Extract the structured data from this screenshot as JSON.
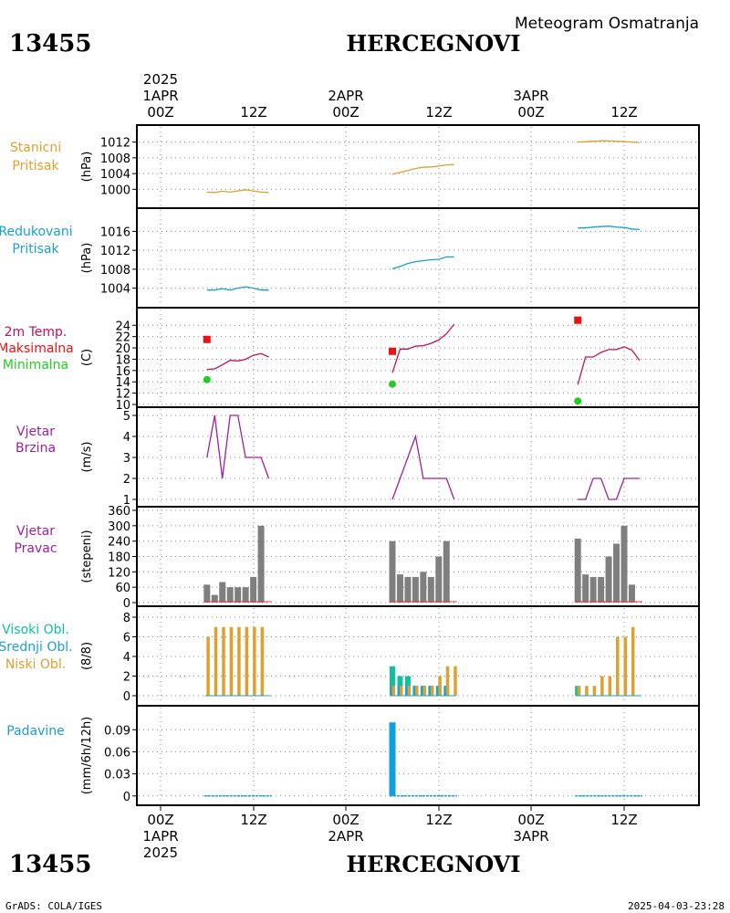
{
  "header": {
    "station_id": "13455",
    "station_name": "HERCEGNOVI",
    "subtitle": "Meteogram Osmatranja"
  },
  "footer": {
    "station_id": "13455",
    "station_name": "HERCEGNOVI",
    "credit": "GrADS: COLA/IGES",
    "timestamp": "2025-04-03-23:28"
  },
  "colors": {
    "pressure": "#e0a030",
    "reduced": "#1aa0d0",
    "temp_line": "#c0105a",
    "temp_max": "#ee1111",
    "temp_min": "#22cc22",
    "wind": "#a020a0",
    "dir_bar": "#7f7f7f",
    "dir_base": "#e04040",
    "cloud_high": "#10c0a0",
    "cloud_mid": "#1aa0d0",
    "cloud_low": "#e0a030",
    "precip": "#10a0e0"
  },
  "time_axis": {
    "year": "2025",
    "days": [
      {
        "date": "1APR",
        "hour0": "00Z",
        "hour12": "12Z"
      },
      {
        "date": "2APR",
        "hour0": "00Z",
        "hour12": "12Z"
      },
      {
        "date": "3APR",
        "hour0": "00Z",
        "hour12": "12Z"
      }
    ]
  },
  "chart_data": [
    {
      "id": "stanicni",
      "type": "line",
      "labels": [
        {
          "text": "Stanicni",
          "color": "#e0a030"
        },
        {
          "text": "Pritisak",
          "color": "#e0a030"
        }
      ],
      "unit": "(hPa)",
      "ylim": [
        998,
        1014
      ],
      "ticks": [
        1000,
        1004,
        1008,
        1012
      ],
      "series": [
        {
          "color": "#e0a030",
          "x": [
            6,
            7,
            8,
            9,
            10,
            11,
            12,
            13,
            14
          ],
          "y": [
            999.3,
            999.2,
            999.5,
            999.3,
            999.6,
            999.9,
            999.6,
            999.3,
            999.2
          ]
        },
        {
          "color": "#e0a030",
          "x": [
            30,
            31,
            32,
            33,
            34,
            35,
            36,
            37,
            38
          ],
          "y": [
            1003.8,
            1004.3,
            1004.8,
            1005.3,
            1005.6,
            1005.7,
            1005.9,
            1006.2,
            1006.3
          ]
        },
        {
          "color": "#e0a030",
          "x": [
            54,
            55,
            56,
            57,
            58,
            59,
            60,
            61,
            62
          ],
          "y": [
            1012.0,
            1012.1,
            1012.2,
            1012.3,
            1012.3,
            1012.2,
            1012.1,
            1012.0,
            1011.9
          ]
        }
      ]
    },
    {
      "id": "redukovani",
      "type": "line",
      "labels": [
        {
          "text": "Redukovani",
          "color": "#1aa0d0"
        },
        {
          "text": "Pritisak",
          "color": "#1aa0d0"
        }
      ],
      "unit": "(hPa)",
      "ylim": [
        1002,
        1018
      ],
      "ticks": [
        1004,
        1008,
        1012,
        1016
      ],
      "series": [
        {
          "color": "#1aa0d0",
          "x": [
            6,
            7,
            8,
            9,
            10,
            11,
            12,
            13,
            14
          ],
          "y": [
            1003.6,
            1003.6,
            1003.9,
            1003.6,
            1004.0,
            1004.3,
            1004.0,
            1003.6,
            1003.6
          ]
        },
        {
          "color": "#1aa0d0",
          "x": [
            30,
            31,
            32,
            33,
            34,
            35,
            36,
            37,
            38
          ],
          "y": [
            1008.1,
            1008.6,
            1009.2,
            1009.6,
            1009.8,
            1010.0,
            1010.1,
            1010.6,
            1010.6
          ]
        },
        {
          "color": "#1aa0d0",
          "x": [
            54,
            55,
            56,
            57,
            58,
            59,
            60,
            61,
            62
          ],
          "y": [
            1016.7,
            1016.7,
            1016.9,
            1017.0,
            1017.1,
            1016.9,
            1016.8,
            1016.5,
            1016.4
          ]
        }
      ]
    },
    {
      "id": "temperatura",
      "type": "line",
      "labels": [
        {
          "text": "2m Temp.",
          "color": "#c0105a"
        },
        {
          "text": "Maksimalna",
          "color": "#ee1111"
        },
        {
          "text": "Minimalna",
          "color": "#22cc22"
        }
      ],
      "unit": "(C)",
      "ylim": [
        10,
        25.5
      ],
      "ticks": [
        10,
        12,
        14,
        16,
        18,
        20,
        22,
        24
      ],
      "series": [
        {
          "color": "#c0105a",
          "x": [
            6,
            7,
            8,
            9,
            10,
            11,
            12,
            13,
            14
          ],
          "y": [
            16.2,
            16.3,
            17.0,
            17.8,
            17.7,
            18.0,
            18.7,
            19.0,
            18.4
          ]
        },
        {
          "color": "#c0105a",
          "x": [
            30,
            31,
            32,
            33,
            34,
            35,
            36,
            37,
            38
          ],
          "y": [
            15.6,
            19.8,
            19.8,
            20.3,
            20.4,
            20.8,
            21.4,
            22.5,
            24.2
          ]
        },
        {
          "color": "#c0105a",
          "x": [
            54,
            55,
            56,
            57,
            58,
            59,
            60,
            61,
            62
          ],
          "y": [
            13.5,
            18.4,
            18.4,
            19.2,
            19.7,
            19.7,
            20.2,
            19.6,
            17.8
          ]
        }
      ],
      "max_points": [
        {
          "x": 6,
          "y": 21.5
        },
        {
          "x": 30,
          "y": 19.4
        },
        {
          "x": 54,
          "y": 24.9
        }
      ],
      "min_points": [
        {
          "x": 6,
          "y": 14.4
        },
        {
          "x": 30,
          "y": 13.6
        },
        {
          "x": 54,
          "y": 10.6
        }
      ]
    },
    {
      "id": "vjetar_brzina",
      "type": "line",
      "labels": [
        {
          "text": "Vjetar",
          "color": "#a020a0"
        },
        {
          "text": "Brzina",
          "color": "#a020a0"
        }
      ],
      "unit": "(m/s)",
      "ylim": [
        1,
        5
      ],
      "ticks": [
        1,
        2,
        3,
        4,
        5
      ],
      "series": [
        {
          "color": "#a020a0",
          "x": [
            6,
            7,
            8,
            9,
            10,
            11,
            12,
            13,
            14
          ],
          "y": [
            3,
            5,
            2,
            5,
            5,
            3,
            3,
            3,
            2
          ]
        },
        {
          "color": "#a020a0",
          "x": [
            30,
            31,
            32,
            33,
            34,
            35,
            36,
            37,
            38
          ],
          "y": [
            1,
            2,
            3,
            4,
            2,
            2,
            2,
            2,
            1
          ]
        },
        {
          "color": "#a020a0",
          "x": [
            54,
            55,
            56,
            57,
            58,
            59,
            60,
            61,
            62
          ],
          "y": [
            1,
            1,
            2,
            2,
            1,
            1,
            2,
            2,
            2
          ]
        }
      ]
    },
    {
      "id": "vjetar_pravac",
      "type": "bar",
      "labels": [
        {
          "text": "Vjetar",
          "color": "#a020a0"
        },
        {
          "text": "Pravac",
          "color": "#a020a0"
        }
      ],
      "unit": "(stepeni)",
      "ylim": [
        0,
        360
      ],
      "ticks": [
        0,
        60,
        120,
        180,
        240,
        300,
        360
      ],
      "x": [
        6,
        7,
        8,
        9,
        10,
        11,
        12,
        13,
        14,
        30,
        31,
        32,
        33,
        34,
        35,
        36,
        37,
        38,
        54,
        55,
        56,
        57,
        58,
        59,
        60,
        61,
        62
      ],
      "values": [
        70,
        30,
        80,
        60,
        60,
        60,
        100,
        300,
        0,
        240,
        110,
        100,
        100,
        120,
        100,
        180,
        240,
        0,
        250,
        110,
        100,
        100,
        180,
        230,
        300,
        70,
        0
      ]
    },
    {
      "id": "oblaci",
      "type": "bar",
      "labels": [
        {
          "text": "Visoki Obl.",
          "color": "#10c0a0"
        },
        {
          "text": "Srednji Obl.",
          "color": "#1aa0d0"
        },
        {
          "text": "Niski Obl.",
          "color": "#e0a030"
        }
      ],
      "unit": "(8/8)",
      "ylim": [
        0,
        8
      ],
      "ticks": [
        0,
        2,
        4,
        6,
        8
      ],
      "x": [
        6,
        7,
        8,
        9,
        10,
        11,
        12,
        13,
        14,
        30,
        31,
        32,
        33,
        34,
        35,
        36,
        37,
        38,
        54,
        55,
        56,
        57,
        58,
        59,
        60,
        61,
        62
      ],
      "series": [
        {
          "name": "Visoki Obl.",
          "color": "#10c0a0",
          "values": [
            0,
            0,
            0,
            0,
            0,
            0,
            0,
            0,
            0,
            3,
            2,
            2,
            1,
            1,
            1,
            1,
            1,
            0,
            1,
            0,
            0,
            0,
            0,
            0,
            0,
            0,
            0
          ]
        },
        {
          "name": "Srednji Obl.",
          "color": "#1aa0d0",
          "values": [
            0,
            0,
            0,
            0,
            0,
            0,
            0,
            0,
            0,
            1,
            1,
            1,
            1,
            1,
            1,
            1,
            1,
            0,
            0,
            0,
            0,
            0,
            0,
            0,
            0,
            0,
            0
          ]
        },
        {
          "name": "Niski Obl.",
          "color": "#e0a030",
          "values": [
            6,
            7,
            7,
            7,
            7,
            7,
            7,
            7,
            0,
            1,
            1,
            1,
            1,
            1,
            1,
            2,
            3,
            3,
            1,
            1,
            1,
            2,
            2,
            6,
            6,
            7,
            0
          ]
        }
      ]
    },
    {
      "id": "padavine",
      "type": "bar",
      "labels": [
        {
          "text": "Padavine",
          "color": "#1aa0d0"
        }
      ],
      "unit": "(mm/6h/12h)",
      "ylim": [
        -0.004,
        0.104
      ],
      "ticks": [
        0,
        0.03,
        0.06,
        0.09
      ],
      "tick_labels": [
        "0",
        "0.03",
        "0.06",
        "0.09"
      ],
      "x": [
        30
      ],
      "values": [
        0.1
      ],
      "zero_segments": [
        [
          6,
          14
        ],
        [
          30,
          38
        ],
        [
          54,
          62
        ]
      ]
    }
  ]
}
